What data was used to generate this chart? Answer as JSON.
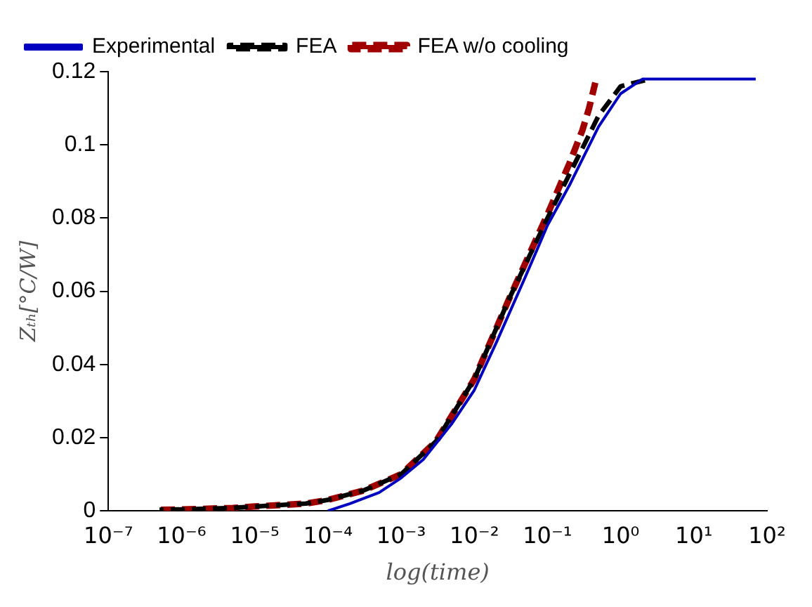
{
  "chart_data": {
    "type": "line",
    "xlabel": "log(time)",
    "ylabel": "Zₜₕ[°C/W]",
    "log": "x",
    "xlim": [
      1e-07,
      100
    ],
    "xticks": [
      {
        "value": 1e-07,
        "label": "10⁻⁷"
      },
      {
        "value": 1e-06,
        "label": "10⁻⁶"
      },
      {
        "value": 1e-05,
        "label": "10⁻⁵"
      },
      {
        "value": 0.0001,
        "label": "10⁻⁴"
      },
      {
        "value": 0.001,
        "label": "10⁻³"
      },
      {
        "value": 0.01,
        "label": "10⁻²"
      },
      {
        "value": 0.1,
        "label": "10⁻¹"
      },
      {
        "value": 1,
        "label": "10⁰"
      },
      {
        "value": 10,
        "label": "10¹"
      },
      {
        "value": 100,
        "label": "10²"
      }
    ],
    "ylim": [
      0,
      0.12
    ],
    "yticks": [
      0,
      0.02,
      0.04,
      0.06,
      0.08,
      0.1,
      0.12
    ],
    "grid": false,
    "legend": "top left",
    "marker": "none",
    "series": [
      {
        "name": "Experimental",
        "color": "#0000c0",
        "line_style": "solid",
        "x": [
          0.0001,
          0.0002,
          0.0005,
          0.001,
          0.002,
          0.005,
          0.01,
          0.02,
          0.05,
          0.1,
          0.2,
          0.5,
          1,
          2,
          5,
          10,
          70
        ],
        "values": [
          0,
          0.002,
          0.005,
          0.009,
          0.014,
          0.024,
          0.033,
          0.046,
          0.064,
          0.078,
          0.089,
          0.105,
          0.114,
          0.118,
          0.118,
          0.118,
          0.118
        ]
      },
      {
        "name": "FEA",
        "color": "#000000",
        "line_style": "dashed",
        "x": [
          5e-07,
          1e-06,
          5e-06,
          1e-05,
          5e-05,
          0.0001,
          0.0003,
          0.001,
          0.003,
          0.01,
          0.03,
          0.1,
          0.2,
          0.5,
          1,
          2.5
        ],
        "values": [
          0.0003,
          0.0004,
          0.0008,
          0.0012,
          0.002,
          0.003,
          0.0055,
          0.01,
          0.019,
          0.036,
          0.058,
          0.08,
          0.092,
          0.108,
          0.116,
          0.118
        ]
      },
      {
        "name": "FEA w/o cooling",
        "color": "#a00000",
        "line_style": "dashed",
        "x": [
          5e-07,
          1e-06,
          5e-06,
          1e-05,
          5e-05,
          0.0001,
          0.0003,
          0.001,
          0.003,
          0.01,
          0.03,
          0.1,
          0.2,
          0.3,
          0.37,
          0.45
        ],
        "values": [
          0.0003,
          0.0004,
          0.0008,
          0.0012,
          0.002,
          0.003,
          0.0055,
          0.01,
          0.019,
          0.036,
          0.058,
          0.081,
          0.095,
          0.104,
          0.11,
          0.117
        ]
      }
    ]
  }
}
